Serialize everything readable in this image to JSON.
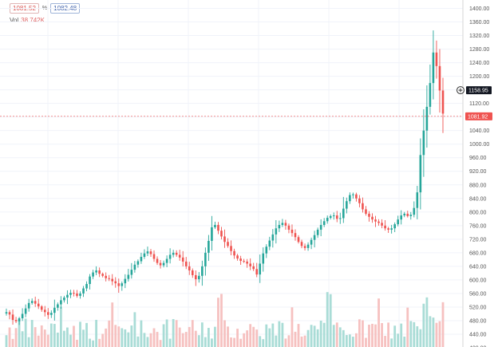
{
  "header": {
    "bid": "1081.52",
    "pct_label": "%",
    "ask": "1082.48"
  },
  "volume": {
    "label": "Vol",
    "value": "38.742K"
  },
  "price_marker": {
    "value": "1081.92",
    "color": "#ef5350"
  },
  "crosshair": {
    "value": "1158.95"
  },
  "colors": {
    "up": "#26a69a",
    "down": "#ef5350",
    "vol_up": "#a9dcd6",
    "vol_down": "#f6c1c0",
    "grid": "#f0f3fa",
    "axis": "#d6d6d6"
  },
  "chart_data": {
    "type": "candlestick",
    "title": "",
    "xlabel": "",
    "ylabel": "",
    "ylim": [
      400,
      1420
    ],
    "y_ticks": [
      400,
      440,
      480,
      520,
      560,
      600,
      640,
      680,
      720,
      760,
      800,
      840,
      880,
      920,
      960,
      1000,
      1040,
      1080,
      1120,
      1160,
      1200,
      1240,
      1280,
      1320,
      1360,
      1400
    ],
    "grid": true,
    "close_series": [
      505,
      498,
      482,
      478,
      487,
      500,
      516,
      532,
      538,
      530,
      522,
      512,
      505,
      497,
      503,
      518,
      528,
      540,
      548,
      556,
      562,
      560,
      553,
      560,
      575,
      588,
      610,
      622,
      628,
      618,
      612,
      605,
      603,
      596,
      590,
      582,
      590,
      603,
      615,
      630,
      645,
      655,
      668,
      678,
      684,
      676,
      662,
      650,
      643,
      650,
      662,
      674,
      680,
      674,
      666,
      654,
      640,
      628,
      614,
      602,
      612,
      640,
      680,
      715,
      755,
      762,
      745,
      728,
      712,
      700,
      685,
      672,
      663,
      656,
      654,
      648,
      640,
      632,
      616,
      648,
      678,
      698,
      716,
      734,
      752,
      762,
      768,
      760,
      748,
      738,
      726,
      712,
      700,
      694,
      704,
      718,
      732,
      748,
      762,
      773,
      783,
      788,
      790,
      780,
      782,
      810,
      832,
      850,
      852,
      840,
      826,
      808,
      795,
      786,
      778,
      772,
      768,
      760,
      752,
      748,
      752,
      764,
      778,
      790,
      795,
      788,
      792,
      812,
      858,
      968,
      1040,
      1110,
      1180,
      1270,
      1230,
      1158,
      1090
    ]
  }
}
